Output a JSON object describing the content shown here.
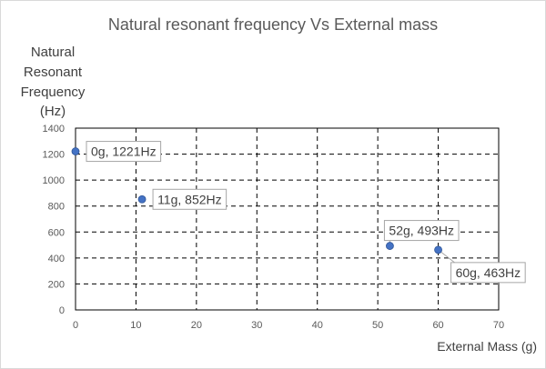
{
  "chart_data": {
    "type": "scatter",
    "title": "Natural resonant frequency Vs External mass",
    "ylabel_lines": [
      "Natural",
      "Resonant",
      "Frequency",
      "(Hz)"
    ],
    "xlabel": "External Mass (g)",
    "xlim": [
      0,
      70
    ],
    "ylim": [
      0,
      1400
    ],
    "xticks": [
      0,
      10,
      20,
      30,
      40,
      50,
      60,
      70
    ],
    "yticks": [
      0,
      200,
      400,
      600,
      800,
      1000,
      1200,
      1400
    ],
    "grid": "dashed",
    "marker_color": "#4472c4",
    "points": [
      {
        "x": 0,
        "y": 1221,
        "label": "0g, 1221Hz"
      },
      {
        "x": 11,
        "y": 852,
        "label": "11g, 852Hz"
      },
      {
        "x": 52,
        "y": 493,
        "label": "52g, 493Hz"
      },
      {
        "x": 60,
        "y": 463,
        "label": "60g, 463Hz"
      }
    ]
  }
}
